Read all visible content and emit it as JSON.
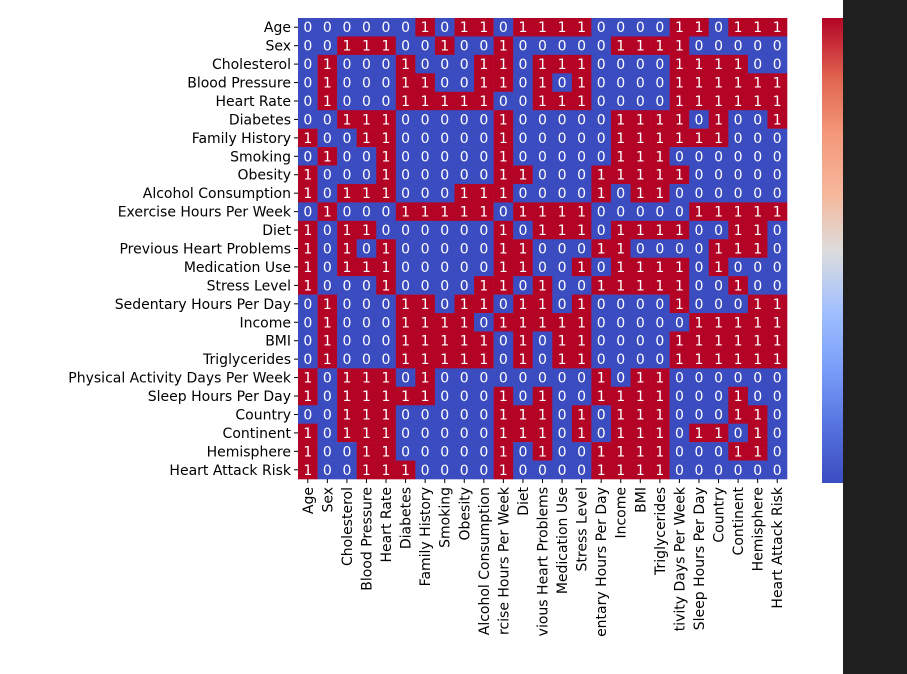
{
  "chart_data": {
    "type": "heatmap",
    "title": "",
    "xlabel": "",
    "ylabel": "",
    "labels": [
      "Age",
      "Sex",
      "Cholesterol",
      "Blood Pressure",
      "Heart Rate",
      "Diabetes",
      "Family History",
      "Smoking",
      "Obesity",
      "Alcohol Consumption",
      "Exercise Hours Per Week",
      "Diet",
      "Previous Heart Problems",
      "Medication Use",
      "Stress Level",
      "Sedentary Hours Per Day",
      "Income",
      "BMI",
      "Triglycerides",
      "Physical Activity Days Per Week",
      "Sleep Hours Per Day",
      "Country",
      "Continent",
      "Hemisphere",
      "Heart Attack Risk"
    ],
    "x_tick_labels_visible": [
      "Age",
      "Sex",
      "Cholesterol",
      "Blood Pressure",
      "Heart Rate",
      "Diabetes",
      "Family History",
      "Smoking",
      "Obesity",
      "Alcohol Consumption",
      "rcise Hours Per Week",
      "Diet",
      "vious Heart Problems",
      "Medication Use",
      "Stress Level",
      "entary Hours Per Day",
      "Income",
      "BMI",
      "Triglycerides",
      "tivity Days Per Week",
      "Sleep Hours Per Day",
      "Country",
      "Continent",
      "Hemisphere",
      "Heart Attack Risk"
    ],
    "matrix": [
      "0000001011011110000110111",
      "0011100100100000111100000",
      "0100010001101110000111100",
      "0100011001101010000111111",
      "0100011111001110000111111",
      "0011100000100000111101001",
      "1001100000100000111111000",
      "0100100000100000111000000",
      "1000100000110001111100000",
      "1011100011100001011000000",
      "0100011111011110000011111",
      "1011000000101110111100110",
      "1010100000110001100001110",
      "1011100000110010111101000",
      "1000100001101001111100100",
      "0100011011011010000100011",
      "0100011110111110000011111",
      "0100011111010110000111111",
      "0100011111010110000111111",
      "1011101000000001011000000",
      "1011111000101001111000100",
      "0011100000111010111000110",
      "1011100000111010111011010",
      "1001100000101001111000110",
      "1001110000100001111000000"
    ],
    "value_range": [
      0.0,
      1.0
    ],
    "colorbar": {
      "colormap": "coolwarm",
      "ticks": [
        "0.0",
        "0.2",
        "0.4",
        "0.6",
        "0.8",
        "1.0"
      ],
      "tick_values": [
        0.0,
        0.2,
        0.4,
        0.6,
        0.8,
        1.0
      ]
    },
    "colors": {
      "low": "#3b4cc0",
      "high": "#b40426",
      "annotation": "#ffffff",
      "figure_background": "#ffffff",
      "outer_background": "#1f1f1f"
    }
  }
}
